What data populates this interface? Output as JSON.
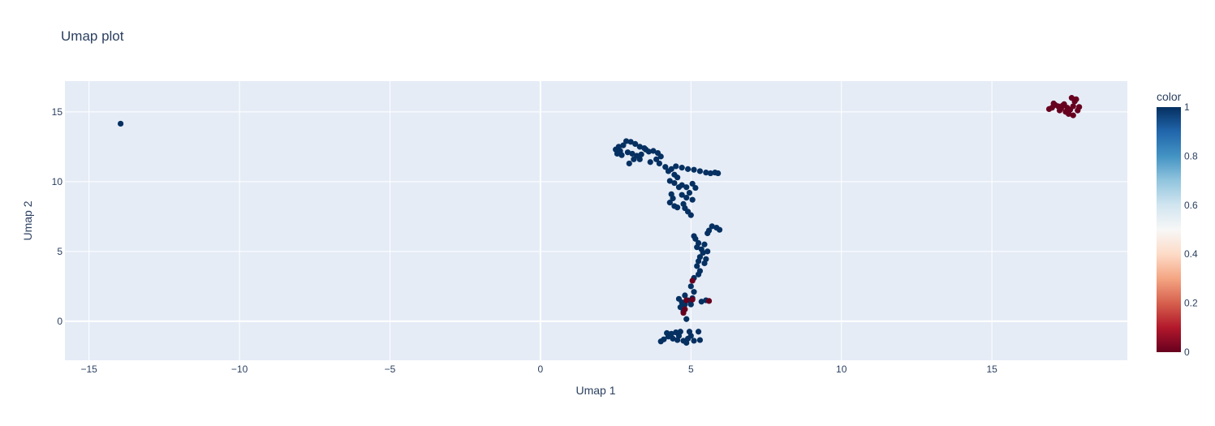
{
  "chart_data": {
    "type": "scatter",
    "title": "Umap plot",
    "xlabel": "Umap 1",
    "ylabel": "Umap 2",
    "xlim": [
      -15.8,
      19.5
    ],
    "ylim": [
      -2.8,
      17.2
    ],
    "x_ticks": [
      -15,
      -10,
      -5,
      0,
      5,
      10,
      15
    ],
    "x_tick_labels": [
      "−15",
      "−10",
      "−5",
      "0",
      "5",
      "10",
      "15"
    ],
    "y_ticks": [
      0,
      5,
      10,
      15
    ],
    "y_tick_labels": [
      "0",
      "5",
      "10",
      "15"
    ],
    "grid": true,
    "colorbar": {
      "title": "color",
      "range": [
        0,
        1
      ],
      "ticks": [
        0,
        0.2,
        0.4,
        0.6,
        0.8,
        1
      ],
      "tick_labels": [
        "0",
        "0.2",
        "0.4",
        "0.6",
        "0.8",
        "1"
      ],
      "colorscale": [
        "#67001f",
        "#b2182b",
        "#d6604d",
        "#f4a582",
        "#fddbc7",
        "#f7f7f7",
        "#d1e5f0",
        "#92c5de",
        "#4393c3",
        "#2166ac",
        "#053061"
      ]
    },
    "colors": {
      "plot_bg": "#e5ecf6",
      "grid": "#ffffff",
      "high": "#053061",
      "low": "#67001f"
    },
    "points": [
      [
        -13.95,
        14.15,
        1
      ],
      [
        2.5,
        12.3,
        1
      ],
      [
        2.6,
        12.5,
        1
      ],
      [
        2.75,
        12.6,
        1
      ],
      [
        2.85,
        12.9,
        1
      ],
      [
        3.0,
        12.85,
        1
      ],
      [
        3.15,
        12.7,
        1
      ],
      [
        3.3,
        12.5,
        1
      ],
      [
        2.55,
        12.0,
        1
      ],
      [
        2.7,
        11.9,
        1
      ],
      [
        2.9,
        12.1,
        1
      ],
      [
        3.05,
        12.0,
        1
      ],
      [
        3.2,
        11.85,
        1
      ],
      [
        3.35,
        11.95,
        1
      ],
      [
        3.5,
        12.3,
        1
      ],
      [
        3.6,
        12.15,
        1
      ],
      [
        3.75,
        12.2,
        1
      ],
      [
        3.9,
        12.05,
        1
      ],
      [
        4.0,
        11.8,
        1
      ],
      [
        3.85,
        11.6,
        1
      ],
      [
        3.65,
        11.4,
        1
      ],
      [
        3.3,
        11.6,
        1
      ],
      [
        3.1,
        11.6,
        1
      ],
      [
        2.95,
        11.3,
        1
      ],
      [
        3.45,
        12.4,
        1
      ],
      [
        2.65,
        12.2,
        1
      ],
      [
        3.95,
        11.3,
        1
      ],
      [
        4.15,
        11.05,
        1
      ],
      [
        4.35,
        10.9,
        1
      ],
      [
        4.5,
        11.1,
        1
      ],
      [
        4.7,
        11.0,
        1
      ],
      [
        4.9,
        10.9,
        1
      ],
      [
        5.1,
        10.85,
        1
      ],
      [
        5.3,
        10.75,
        1
      ],
      [
        5.5,
        10.65,
        1
      ],
      [
        5.65,
        10.6,
        1
      ],
      [
        5.8,
        10.65,
        1
      ],
      [
        5.9,
        10.6,
        1
      ],
      [
        4.25,
        10.75,
        1
      ],
      [
        4.45,
        10.5,
        1
      ],
      [
        4.55,
        10.3,
        1
      ],
      [
        4.3,
        10.05,
        1
      ],
      [
        4.45,
        9.9,
        1
      ],
      [
        4.6,
        9.6,
        1
      ],
      [
        4.7,
        9.75,
        1
      ],
      [
        4.85,
        9.6,
        1
      ],
      [
        5.05,
        9.85,
        1
      ],
      [
        5.15,
        9.55,
        1
      ],
      [
        4.35,
        9.1,
        1
      ],
      [
        4.4,
        8.8,
        1
      ],
      [
        4.3,
        8.5,
        1
      ],
      [
        4.45,
        8.25,
        1
      ],
      [
        4.55,
        8.15,
        1
      ],
      [
        4.75,
        8.4,
        1
      ],
      [
        4.85,
        8.85,
        1
      ],
      [
        4.7,
        9.05,
        1
      ],
      [
        4.95,
        9.2,
        1
      ],
      [
        5.05,
        8.7,
        1
      ],
      [
        4.9,
        7.85,
        1
      ],
      [
        5.0,
        7.6,
        1
      ],
      [
        4.8,
        8.1,
        1
      ],
      [
        5.1,
        6.1,
        1
      ],
      [
        5.15,
        5.9,
        1
      ],
      [
        5.25,
        5.6,
        1
      ],
      [
        5.2,
        5.3,
        1
      ],
      [
        5.35,
        5.15,
        1
      ],
      [
        5.4,
        4.9,
        1
      ],
      [
        5.3,
        4.6,
        1
      ],
      [
        5.25,
        4.3,
        1
      ],
      [
        5.45,
        4.15,
        1
      ],
      [
        5.5,
        4.45,
        1
      ],
      [
        5.2,
        3.95,
        1
      ],
      [
        5.3,
        3.6,
        1
      ],
      [
        5.25,
        3.35,
        1
      ],
      [
        5.1,
        3.1,
        1
      ],
      [
        5.6,
        6.5,
        1
      ],
      [
        5.7,
        6.8,
        1
      ],
      [
        5.85,
        6.7,
        1
      ],
      [
        5.95,
        6.55,
        1
      ],
      [
        5.55,
        6.3,
        1
      ],
      [
        5.45,
        5.5,
        1
      ],
      [
        5.55,
        5.0,
        1
      ],
      [
        5.0,
        2.5,
        1
      ],
      [
        5.1,
        2.1,
        1
      ],
      [
        4.8,
        1.85,
        1
      ],
      [
        4.6,
        1.6,
        1
      ],
      [
        4.7,
        1.35,
        1
      ],
      [
        4.8,
        1.2,
        1
      ],
      [
        4.9,
        1.5,
        1
      ],
      [
        5.05,
        1.65,
        1
      ],
      [
        5.0,
        1.2,
        1
      ],
      [
        5.5,
        1.5,
        1
      ],
      [
        5.35,
        1.4,
        1
      ],
      [
        4.65,
        1.0,
        1
      ],
      [
        4.75,
        0.7,
        1
      ],
      [
        4.85,
        0.15,
        1
      ],
      [
        4.0,
        -1.45,
        1
      ],
      [
        4.1,
        -1.3,
        1
      ],
      [
        4.25,
        -1.1,
        1
      ],
      [
        4.35,
        -0.9,
        1
      ],
      [
        4.5,
        -0.8,
        1
      ],
      [
        4.6,
        -1.05,
        1
      ],
      [
        4.4,
        -1.25,
        1
      ],
      [
        4.55,
        -1.35,
        1
      ],
      [
        4.75,
        -1.4,
        1
      ],
      [
        4.9,
        -1.25,
        1
      ],
      [
        5.0,
        -1.05,
        1
      ],
      [
        5.1,
        -1.4,
        1
      ],
      [
        5.3,
        -1.35,
        1
      ],
      [
        5.25,
        -0.75,
        1
      ],
      [
        4.85,
        -1.55,
        1
      ],
      [
        4.65,
        -0.75,
        1
      ],
      [
        4.95,
        -0.75,
        1
      ],
      [
        4.2,
        -0.85,
        1
      ],
      [
        5.05,
        2.9,
        0
      ],
      [
        4.85,
        1.5,
        0
      ],
      [
        5.05,
        1.55,
        0
      ],
      [
        5.6,
        1.45,
        0
      ],
      [
        4.8,
        0.85,
        0
      ],
      [
        4.75,
        0.6,
        0
      ],
      [
        16.9,
        15.2,
        0
      ],
      [
        17.0,
        15.3,
        0
      ],
      [
        17.1,
        15.5,
        0
      ],
      [
        17.2,
        15.4,
        0
      ],
      [
        17.3,
        15.25,
        0
      ],
      [
        17.4,
        15.55,
        0
      ],
      [
        17.5,
        15.3,
        0
      ],
      [
        17.6,
        15.15,
        0
      ],
      [
        17.7,
        15.4,
        0
      ],
      [
        17.75,
        15.75,
        0
      ],
      [
        17.8,
        15.9,
        0
      ],
      [
        17.65,
        16.0,
        0
      ],
      [
        17.55,
        14.85,
        0
      ],
      [
        17.7,
        14.75,
        0
      ],
      [
        17.9,
        15.35,
        0
      ],
      [
        17.25,
        15.1,
        0
      ],
      [
        17.45,
        15.0,
        0
      ],
      [
        17.35,
        15.45,
        0
      ],
      [
        17.05,
        15.6,
        0
      ],
      [
        17.85,
        15.1,
        0
      ]
    ]
  }
}
